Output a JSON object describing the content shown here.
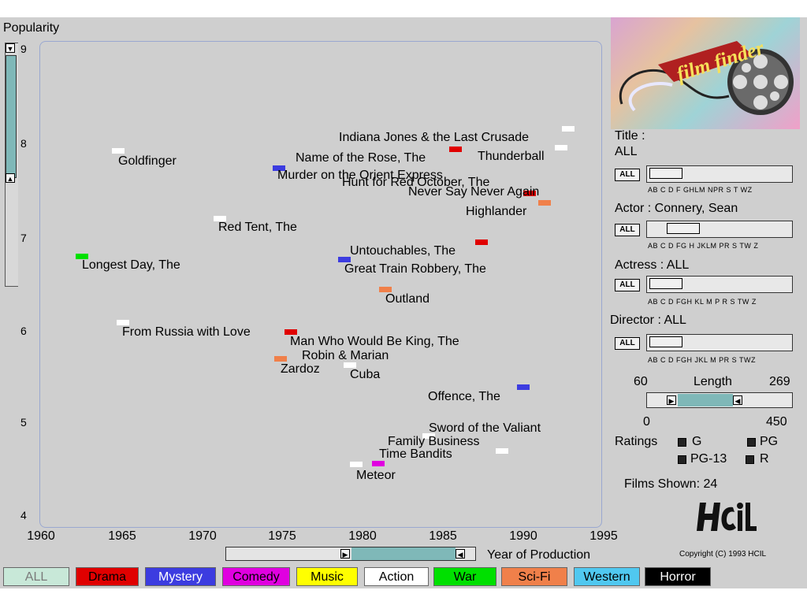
{
  "popularity_axis": {
    "title": "Popularity",
    "ticks": [
      "9",
      "8",
      "7",
      "6",
      "5",
      "4"
    ]
  },
  "x_axis": {
    "title": "Year of Production",
    "ticks": [
      "1960",
      "1965",
      "1970",
      "1975",
      "1980",
      "1985",
      "1990",
      "1995"
    ]
  },
  "colors": {
    "drama": "#e00000",
    "mystery": "#3c3ce0",
    "comedy": "#e000e0",
    "music": "#ffff00",
    "action": "#ffffff",
    "war": "#00e000",
    "scifi": "#f0804a",
    "western": "#50c8f0",
    "horror": "#000000"
  },
  "films": [
    {
      "title": "Indiana Jones & the Last Crusade",
      "year": 1989,
      "popularity": 8.0,
      "genre": "action"
    },
    {
      "title": "Thunderball",
      "year": 1965,
      "popularity": 7.8,
      "genre": "action"
    },
    {
      "title": "Goldfinger",
      "year": 1964,
      "popularity": 7.8,
      "genre": "action"
    },
    {
      "title": "Name of the Rose, The",
      "year": 1986,
      "popularity": 7.8,
      "genre": "drama"
    },
    {
      "title": "Murder on the Orient Express",
      "year": 1974,
      "popularity": 7.6,
      "genre": "mystery"
    },
    {
      "title": "Hunt for Red October, The",
      "year": 1990,
      "popularity": 7.4,
      "genre": "drama"
    },
    {
      "title": "Never Say Never Again",
      "year": 1983,
      "popularity": 7.4,
      "genre": "action"
    },
    {
      "title": "Highlander",
      "year": 1986,
      "popularity": 7.3,
      "genre": "scifi"
    },
    {
      "title": "Red Tent, The",
      "year": 1971,
      "popularity": 7.1,
      "genre": "action"
    },
    {
      "title": "Untouchables, The",
      "year": 1987,
      "popularity": 6.9,
      "genre": "drama"
    },
    {
      "title": "Longest Day, The",
      "year": 1962,
      "popularity": 6.7,
      "genre": "war"
    },
    {
      "title": "Great Train Robbery, The",
      "year": 1979,
      "popularity": 6.7,
      "genre": "mystery"
    },
    {
      "title": "Outland",
      "year": 1981,
      "popularity": 6.4,
      "genre": "scifi"
    },
    {
      "title": "From Russia with Love",
      "year": 1963,
      "popularity": 6.1,
      "genre": "action"
    },
    {
      "title": "Man Who Would Be King, The",
      "year": 1975,
      "popularity": 6.0,
      "genre": "drama"
    },
    {
      "title": "Robin & Marian",
      "year": 1976,
      "popularity": 5.7,
      "genre": "scifi"
    },
    {
      "title": "Zardoz",
      "year": 1974,
      "popularity": 5.7,
      "genre": "scifi"
    },
    {
      "title": "Cuba",
      "year": 1979,
      "popularity": 5.6,
      "genre": "action"
    },
    {
      "title": "Offence, The",
      "year": 1972,
      "popularity": 5.4,
      "genre": "mystery"
    },
    {
      "title": "Sword of the Valiant",
      "year": 1984,
      "popularity": 4.9,
      "genre": "action"
    },
    {
      "title": "Family Business",
      "year": 1989,
      "popularity": 4.8,
      "genre": "action"
    },
    {
      "title": "Time Bandits",
      "year": 1981,
      "popularity": 4.6,
      "genre": "comedy"
    },
    {
      "title": "Meteor",
      "year": 1979,
      "popularity": 4.6,
      "genre": "action"
    }
  ],
  "genres": [
    {
      "label": "ALL",
      "bg": "#c8e8d8",
      "fg": "#7a7a7a"
    },
    {
      "label": "Drama",
      "bg": "#e00000",
      "fg": "#000000"
    },
    {
      "label": "Mystery",
      "bg": "#3c3ce0",
      "fg": "#ffffff"
    },
    {
      "label": "Comedy",
      "bg": "#e000e0",
      "fg": "#000000"
    },
    {
      "label": "Music",
      "bg": "#ffff00",
      "fg": "#000000"
    },
    {
      "label": "Action",
      "bg": "#ffffff",
      "fg": "#000000"
    },
    {
      "label": "War",
      "bg": "#00e000",
      "fg": "#000000"
    },
    {
      "label": "Sci-Fi",
      "bg": "#f0804a",
      "fg": "#000000"
    },
    {
      "label": "Western",
      "bg": "#50c8f0",
      "fg": "#000000"
    },
    {
      "label": "Horror",
      "bg": "#000000",
      "fg": "#ffffff"
    }
  ],
  "panel": {
    "logo_text": "film finder",
    "title_label": "Title :",
    "title_value": "ALL",
    "actor_label": "Actor : Connery, Sean",
    "actress_label": "Actress : ALL",
    "director_label": "Director : ALL",
    "all_button": "ALL",
    "title_letters": "AB C D F GHLM NPR S  T  WZ",
    "actor_letters": "AB  C  D FG H JKLM  PR S  TW Z",
    "actress_letters": "AB  C  D FGH KL M  P R S  TW Z",
    "director_letters": "AB  C  D FGH JKL M  PR S  TWZ",
    "length_min_sel": "60",
    "length_label": "Length",
    "length_max_sel": "269",
    "length_min": "0",
    "length_max": "450",
    "ratings_label": "Ratings",
    "rating_g": "G",
    "rating_pg": "PG",
    "rating_pg13": "PG-13",
    "rating_r": "R",
    "films_shown": "Films Shown:  24",
    "copyright": "Copyright (C) 1993 HCIL"
  }
}
